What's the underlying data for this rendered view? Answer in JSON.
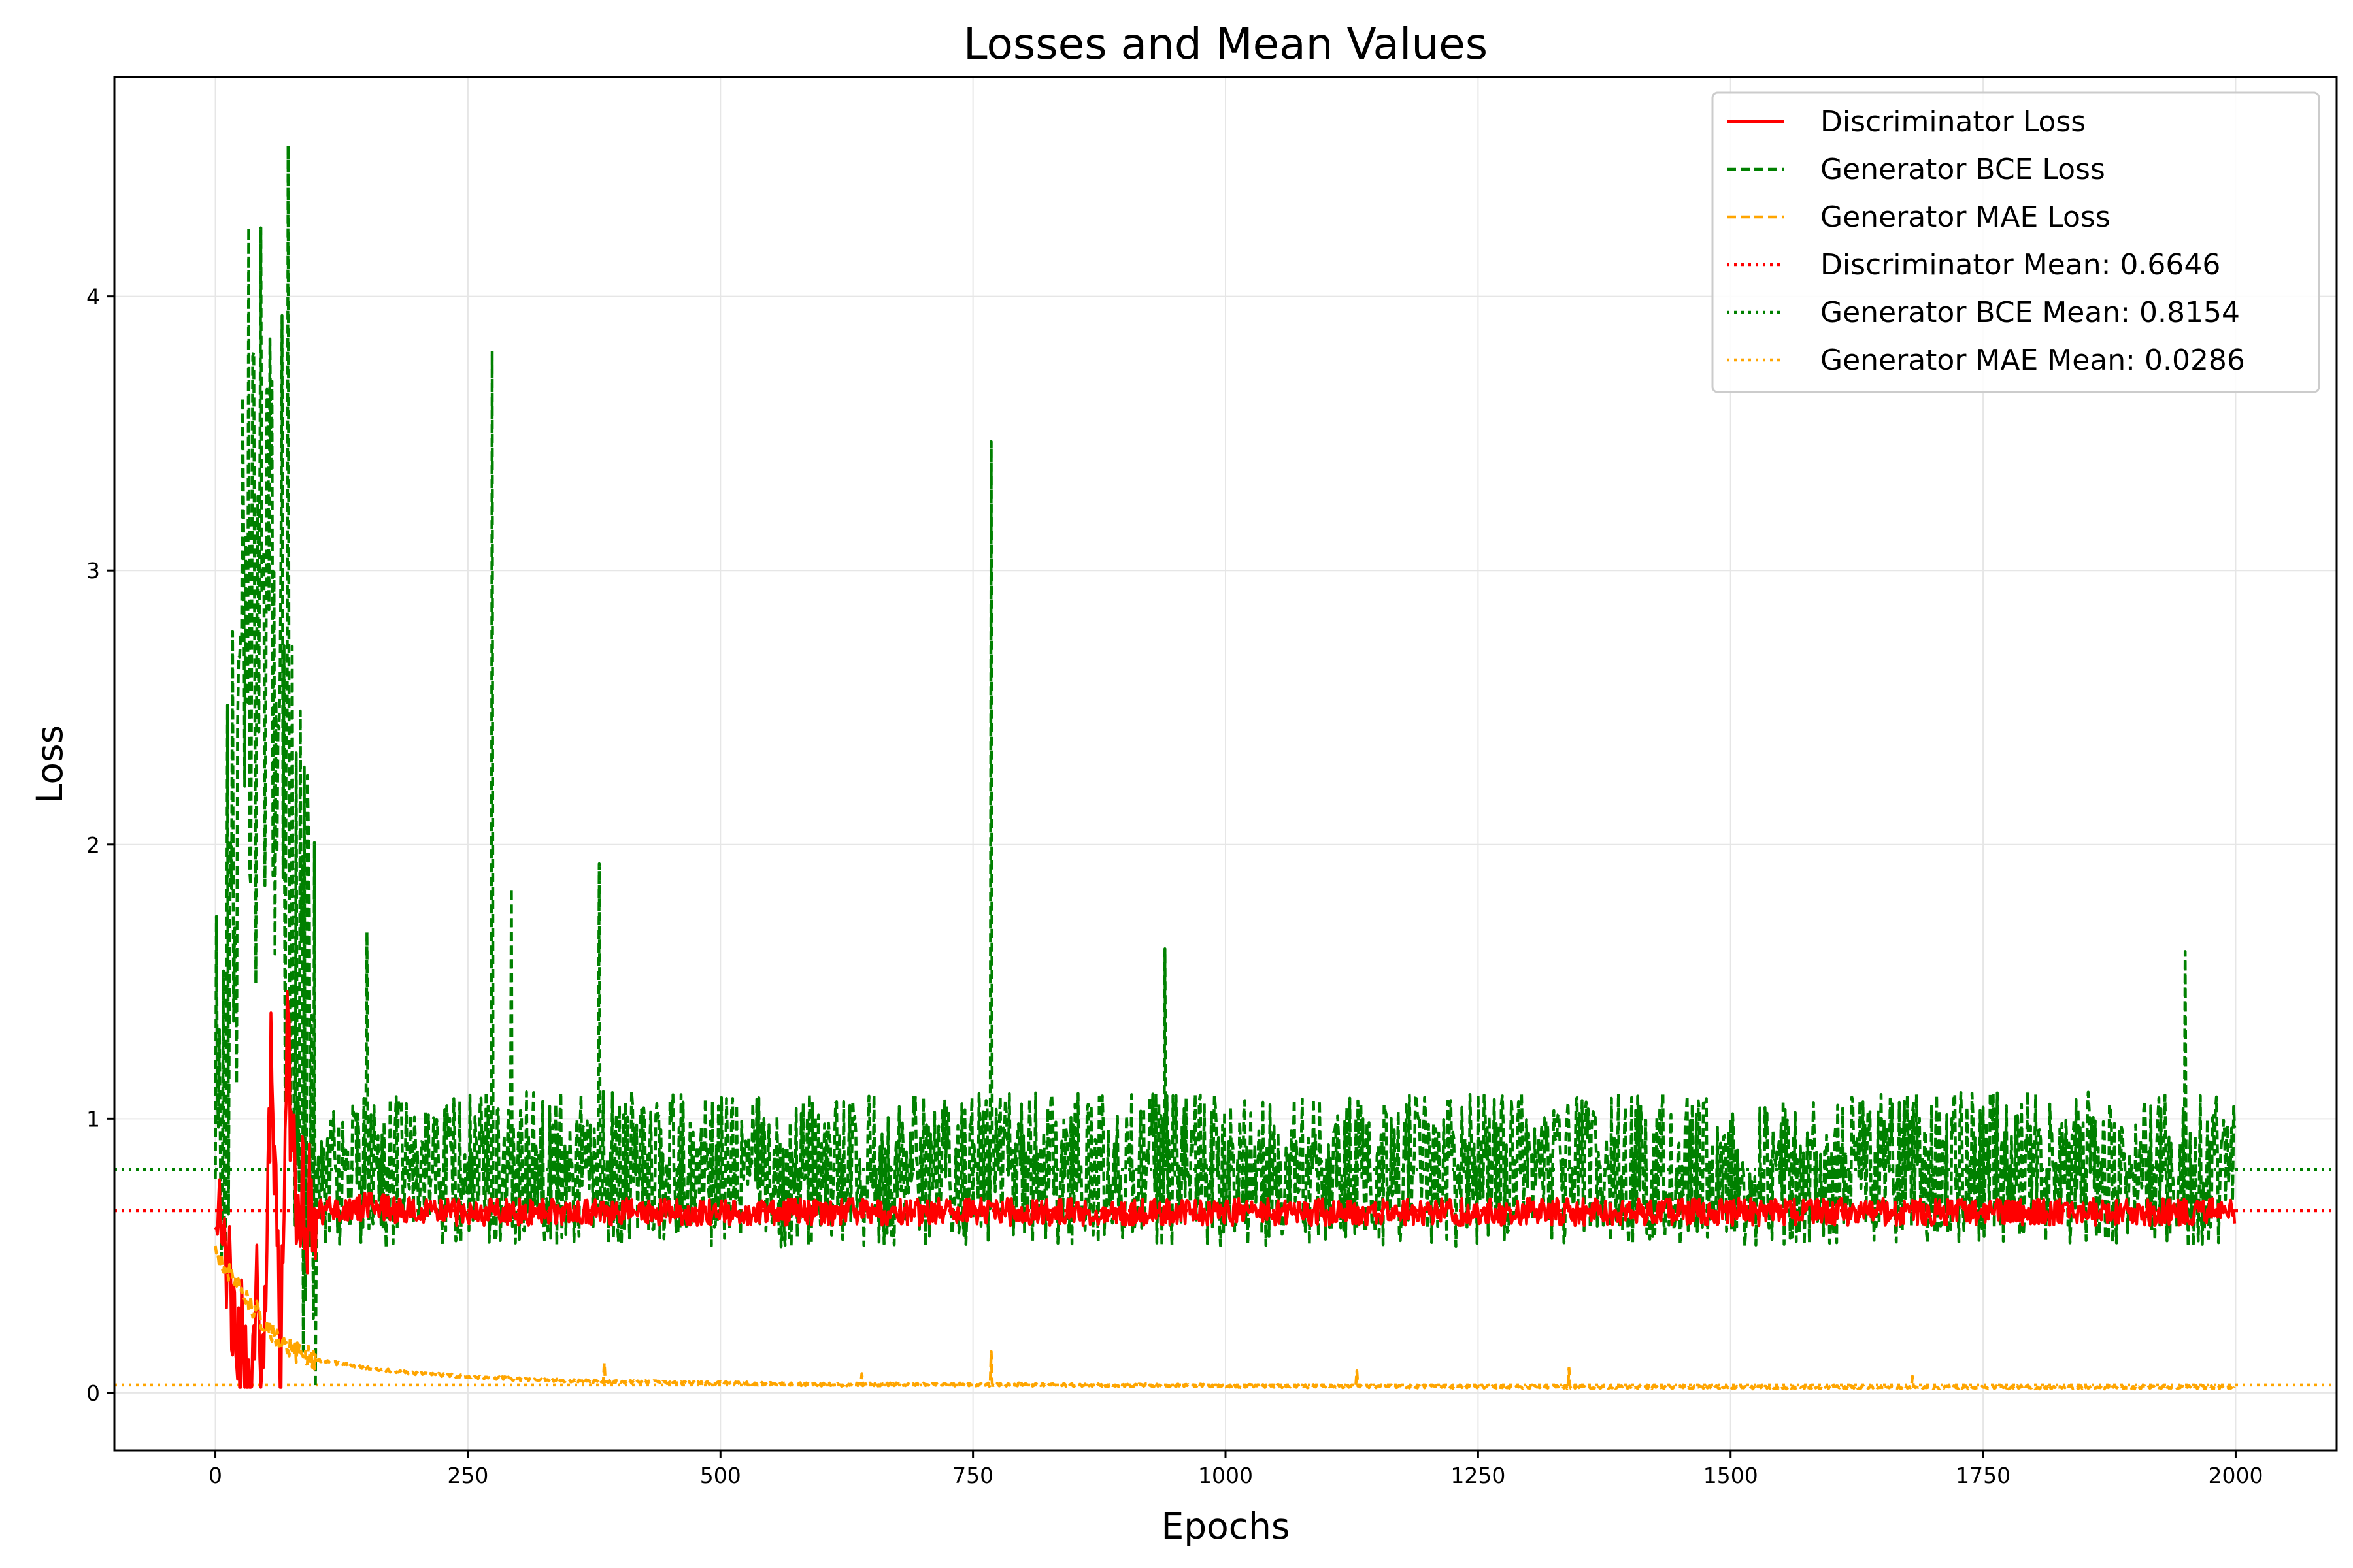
{
  "chart_data": {
    "type": "line",
    "title": "Losses and Mean Values",
    "xlabel": "Epochs",
    "ylabel": "Loss",
    "xlim": [
      -100,
      2100
    ],
    "ylim": [
      -0.21,
      4.8
    ],
    "x_ticks": [
      "0",
      "250",
      "500",
      "750",
      "1000",
      "1250",
      "1500",
      "1750",
      "2000"
    ],
    "x_tick_values": [
      0,
      250,
      500,
      750,
      1000,
      1250,
      1500,
      1750,
      2000
    ],
    "y_ticks": [
      "0",
      "1",
      "2",
      "3",
      "4"
    ],
    "y_tick_values": [
      0,
      1,
      2,
      3,
      4
    ],
    "grid": true,
    "legend_position": "upper right",
    "epochs": 2000,
    "series": [
      {
        "name": "Discriminator Loss",
        "style": "solid",
        "color": "#ff0000",
        "approx_x": [
          0,
          10,
          20,
          30,
          35,
          40,
          45,
          50,
          55,
          60,
          65,
          70,
          80,
          100,
          150,
          200,
          400,
          600,
          800,
          1000,
          1200,
          1400,
          1600,
          1800,
          2000
        ],
        "approx_y": [
          0.7,
          0.55,
          0.3,
          0.1,
          0.05,
          0.35,
          0.05,
          0.25,
          1.2,
          0.6,
          0.1,
          1.3,
          0.7,
          0.66,
          0.68,
          0.66,
          0.66,
          0.66,
          0.66,
          0.66,
          0.66,
          0.66,
          0.66,
          0.66,
          0.66
        ]
      },
      {
        "name": "Generator BCE Loss",
        "style": "dashed",
        "color": "#008000",
        "spikes": [
          [
            33,
            4.25
          ],
          [
            45,
            4.25
          ],
          [
            66,
            3.93
          ],
          [
            72,
            4.55
          ],
          [
            92,
            2.07
          ],
          [
            150,
            1.68
          ],
          [
            274,
            3.8
          ],
          [
            293,
            1.84
          ],
          [
            380,
            1.93
          ],
          [
            768,
            3.47
          ],
          [
            940,
            1.62
          ],
          [
            1950,
            1.61
          ]
        ],
        "approx_x": [
          0,
          20,
          30,
          40,
          60,
          80,
          100,
          150,
          200,
          400,
          600,
          800,
          1000,
          1200,
          1400,
          1600,
          1800,
          2000
        ],
        "approx_y": [
          0.7,
          2.0,
          3.0,
          2.5,
          2.8,
          1.5,
          0.8,
          0.8,
          0.82,
          0.82,
          0.81,
          0.82,
          0.81,
          0.81,
          0.82,
          0.81,
          0.82,
          0.81
        ]
      },
      {
        "name": "Generator MAE Loss",
        "style": "dashed",
        "color": "#ffa500",
        "spikes": [
          [
            385,
            0.11
          ],
          [
            640,
            0.07
          ],
          [
            768,
            0.15
          ],
          [
            1130,
            0.08
          ],
          [
            1340,
            0.09
          ],
          [
            1680,
            0.06
          ]
        ],
        "approx_x": [
          0,
          20,
          40,
          60,
          80,
          100,
          150,
          200,
          300,
          400,
          600,
          800,
          1000,
          1500,
          2000
        ],
        "approx_y": [
          0.5,
          0.4,
          0.3,
          0.2,
          0.15,
          0.12,
          0.09,
          0.07,
          0.05,
          0.04,
          0.03,
          0.03,
          0.025,
          0.02,
          0.02
        ]
      }
    ],
    "mean_lines": [
      {
        "name": "Discriminator Mean: 0.6646",
        "value": 0.6646,
        "color": "#ff0000",
        "style": "dotted"
      },
      {
        "name": "Generator BCE Mean: 0.8154",
        "value": 0.8154,
        "color": "#008000",
        "style": "dotted"
      },
      {
        "name": "Generator MAE Mean: 0.0286",
        "value": 0.0286,
        "color": "#ffa500",
        "style": "dotted"
      }
    ]
  }
}
